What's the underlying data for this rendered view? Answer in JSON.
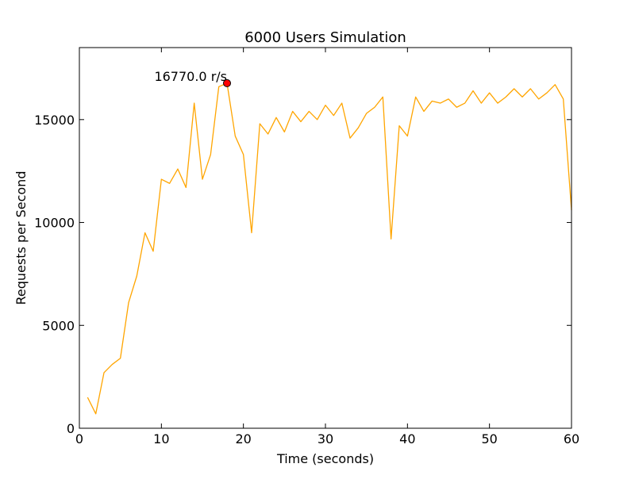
{
  "chart_data": {
    "type": "line",
    "title": "6000 Users Simulation",
    "xlabel": "Time (seconds)",
    "ylabel": "Requests per Second",
    "xlim": [
      0,
      60
    ],
    "ylim": [
      0,
      18500
    ],
    "xticks": [
      0,
      10,
      20,
      30,
      40,
      50,
      60
    ],
    "yticks": [
      0,
      5000,
      10000,
      15000
    ],
    "grid": false,
    "colors": {
      "line": "#ffa500",
      "peak_marker_fill": "#ff0000",
      "peak_marker_stroke": "#000000",
      "axes": "#000000",
      "background": "#ffffff"
    },
    "series": [
      {
        "x": [
          1,
          2,
          3,
          4,
          5,
          6,
          7,
          8,
          9,
          10,
          11,
          12,
          13,
          14,
          15,
          16,
          17,
          18,
          19,
          20,
          21,
          22,
          23,
          24,
          25,
          26,
          27,
          28,
          29,
          30,
          31,
          32,
          33,
          34,
          35,
          36,
          37,
          38,
          39,
          40,
          41,
          42,
          43,
          44,
          45,
          46,
          47,
          48,
          49,
          50,
          51,
          52,
          53,
          54,
          55,
          56,
          57,
          58,
          59,
          60
        ],
        "values": [
          1500,
          700,
          2700,
          3100,
          3400,
          6100,
          7400,
          9500,
          8600,
          12100,
          11900,
          12600,
          11700,
          15800,
          12100,
          13300,
          16600,
          16770,
          14200,
          13300,
          9500,
          14800,
          14300,
          15100,
          14400,
          15400,
          14900,
          15400,
          15000,
          15700,
          15200,
          15800,
          14100,
          14600,
          15300,
          15600,
          16100,
          9200,
          14700,
          14200,
          16100,
          15400,
          15900,
          15800,
          16000,
          15600,
          15800,
          16400,
          15800,
          16300,
          15800,
          16100,
          16500,
          16100,
          16500,
          16000,
          16300,
          16700,
          16000,
          10600
        ]
      }
    ],
    "annotations": [
      {
        "text": "16770.0 r/s",
        "x": 18,
        "y": 16770,
        "kind": "peak-marker"
      }
    ]
  }
}
